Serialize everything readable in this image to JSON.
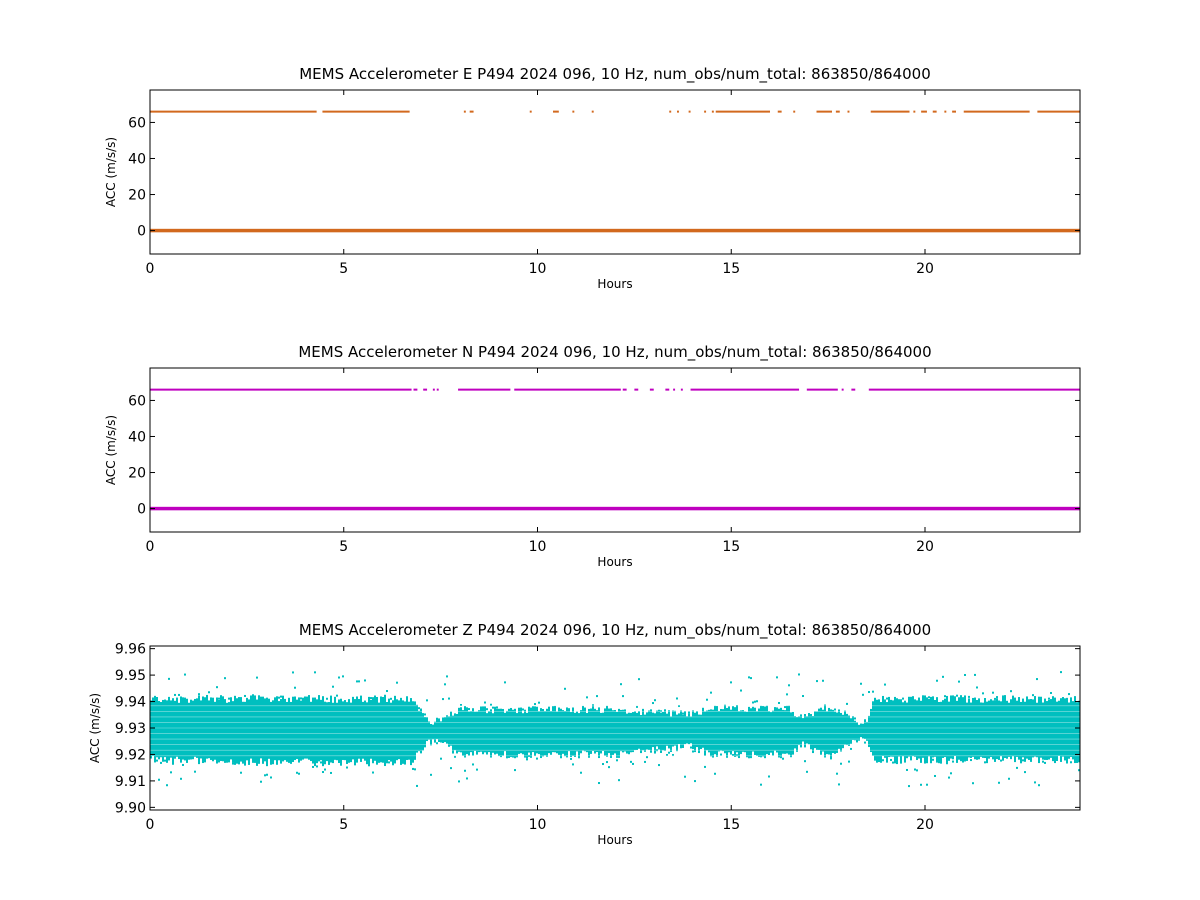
{
  "chart_data": [
    {
      "type": "scatter",
      "title": "MEMS Accelerometer E P494 2024 096, 10 Hz, num_obs/num_total: 863850/864000",
      "xlabel": "Hours",
      "ylabel": "ACC (m/s/s)",
      "xlim": [
        0,
        24
      ],
      "ylim": [
        -13,
        78
      ],
      "xticks": [
        0,
        5,
        10,
        15,
        20
      ],
      "yticks": [
        0,
        20,
        40,
        60
      ],
      "grid": false,
      "color": "#d2691e",
      "series": [
        {
          "band_value": 0,
          "segments": [
            [
              0,
              24
            ]
          ]
        },
        {
          "band_value": 66,
          "segments": [
            [
              0,
              4.3
            ],
            [
              4.45,
              6.7
            ],
            [
              8.1,
              8.15
            ],
            [
              8.25,
              8.35
            ],
            [
              9.8,
              9.85
            ],
            [
              10.4,
              10.55
            ],
            [
              10.9,
              10.95
            ],
            [
              11.4,
              11.45
            ],
            [
              13.4,
              13.45
            ],
            [
              13.6,
              13.65
            ],
            [
              13.9,
              13.95
            ],
            [
              14.3,
              14.35
            ],
            [
              14.5,
              14.55
            ],
            [
              14.6,
              16.0
            ],
            [
              16.2,
              16.3
            ],
            [
              16.6,
              16.65
            ],
            [
              17.2,
              17.6
            ],
            [
              17.7,
              17.8
            ],
            [
              18.0,
              18.05
            ],
            [
              18.6,
              19.6
            ],
            [
              19.7,
              19.75
            ],
            [
              19.9,
              20.05
            ],
            [
              20.2,
              20.3
            ],
            [
              20.5,
              20.55
            ],
            [
              20.7,
              20.8
            ],
            [
              21.0,
              22.7
            ],
            [
              22.9,
              24
            ]
          ]
        }
      ]
    },
    {
      "type": "scatter",
      "title": "MEMS Accelerometer N P494 2024 096, 10 Hz, num_obs/num_total: 863850/864000",
      "xlabel": "Hours",
      "ylabel": "ACC (m/s/s)",
      "xlim": [
        0,
        24
      ],
      "ylim": [
        -13,
        78
      ],
      "xticks": [
        0,
        5,
        10,
        15,
        20
      ],
      "yticks": [
        0,
        20,
        40,
        60
      ],
      "grid": false,
      "color": "#bf00bf",
      "series": [
        {
          "band_value": 0,
          "segments": [
            [
              0,
              24
            ]
          ]
        },
        {
          "band_value": 66,
          "segments": [
            [
              0,
              6.75
            ],
            [
              6.8,
              6.9
            ],
            [
              7.05,
              7.15
            ],
            [
              7.3,
              7.35
            ],
            [
              7.4,
              7.45
            ],
            [
              7.95,
              9.3
            ],
            [
              9.4,
              12.15
            ],
            [
              12.2,
              12.3
            ],
            [
              12.5,
              12.6
            ],
            [
              12.9,
              13.0
            ],
            [
              13.3,
              13.4
            ],
            [
              13.5,
              13.55
            ],
            [
              13.7,
              13.75
            ],
            [
              13.95,
              16.75
            ],
            [
              16.95,
              17.75
            ],
            [
              17.85,
              17.9
            ],
            [
              18.1,
              18.2
            ],
            [
              18.55,
              24
            ]
          ]
        }
      ]
    },
    {
      "type": "scatter",
      "title": "MEMS Accelerometer Z P494 2024 096, 10 Hz, num_obs/num_total: 863850/864000",
      "xlabel": "Hours",
      "ylabel": "ACC (m/s/s)",
      "xlim": [
        0,
        24
      ],
      "ylim": [
        9.899,
        9.961
      ],
      "xticks": [
        0,
        5,
        10,
        15,
        20
      ],
      "yticks": [
        9.9,
        9.91,
        9.92,
        9.93,
        9.94,
        9.95,
        9.96
      ],
      "ytick_labels": [
        "9.90",
        "9.91",
        "9.92",
        "9.93",
        "9.94",
        "9.95",
        "9.96"
      ],
      "grid": false,
      "color": "#00bfbf",
      "series": [
        {
          "band_center": 9.929,
          "band_profile": [
            {
              "x": 0,
              "lo": 9.918,
              "hi": 9.941
            },
            {
              "x": 3,
              "lo": 9.917,
              "hi": 9.941
            },
            {
              "x": 6.7,
              "lo": 9.917,
              "hi": 9.941
            },
            {
              "x": 7.2,
              "lo": 9.925,
              "hi": 9.932
            },
            {
              "x": 7.5,
              "lo": 9.924,
              "hi": 9.933
            },
            {
              "x": 8.0,
              "lo": 9.92,
              "hi": 9.937
            },
            {
              "x": 12.0,
              "lo": 9.92,
              "hi": 9.937
            },
            {
              "x": 13.9,
              "lo": 9.923,
              "hi": 9.935
            },
            {
              "x": 14.5,
              "lo": 9.92,
              "hi": 9.938
            },
            {
              "x": 16.5,
              "lo": 9.92,
              "hi": 9.937
            },
            {
              "x": 16.8,
              "lo": 9.924,
              "hi": 9.934
            },
            {
              "x": 17.5,
              "lo": 9.919,
              "hi": 9.938
            },
            {
              "x": 18.2,
              "lo": 9.925,
              "hi": 9.933
            },
            {
              "x": 18.4,
              "lo": 9.927,
              "hi": 9.931
            },
            {
              "x": 18.7,
              "lo": 9.918,
              "hi": 9.941
            },
            {
              "x": 24,
              "lo": 9.918,
              "hi": 9.941
            }
          ],
          "outlier_range": [
            9.906,
            9.953
          ]
        }
      ]
    }
  ]
}
